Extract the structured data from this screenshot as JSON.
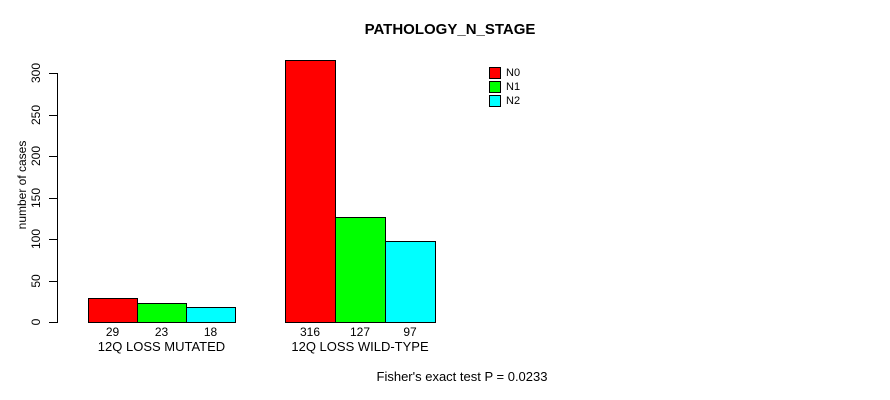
{
  "chart_data": {
    "type": "bar",
    "title": "PATHOLOGY_N_STAGE",
    "xlabel": "",
    "ylabel": "number of cases",
    "ylim": [
      0,
      300
    ],
    "yticks": [
      0,
      50,
      100,
      150,
      200,
      250,
      300
    ],
    "grid": false,
    "legend_position": "top-right",
    "categories": [
      "12Q LOSS MUTATED",
      "12Q LOSS WILD-TYPE"
    ],
    "series": [
      {
        "name": "N0",
        "color": "#ff0000",
        "values": [
          29,
          316
        ]
      },
      {
        "name": "N1",
        "color": "#00ff00",
        "values": [
          23,
          127
        ]
      },
      {
        "name": "N2",
        "color": "#00ffff",
        "values": [
          18,
          97
        ]
      }
    ],
    "bar_value_labels": [
      [
        29,
        23,
        18
      ],
      [
        316,
        127,
        97
      ]
    ],
    "annotation": "Fisher's exact test P = 0.0233"
  }
}
